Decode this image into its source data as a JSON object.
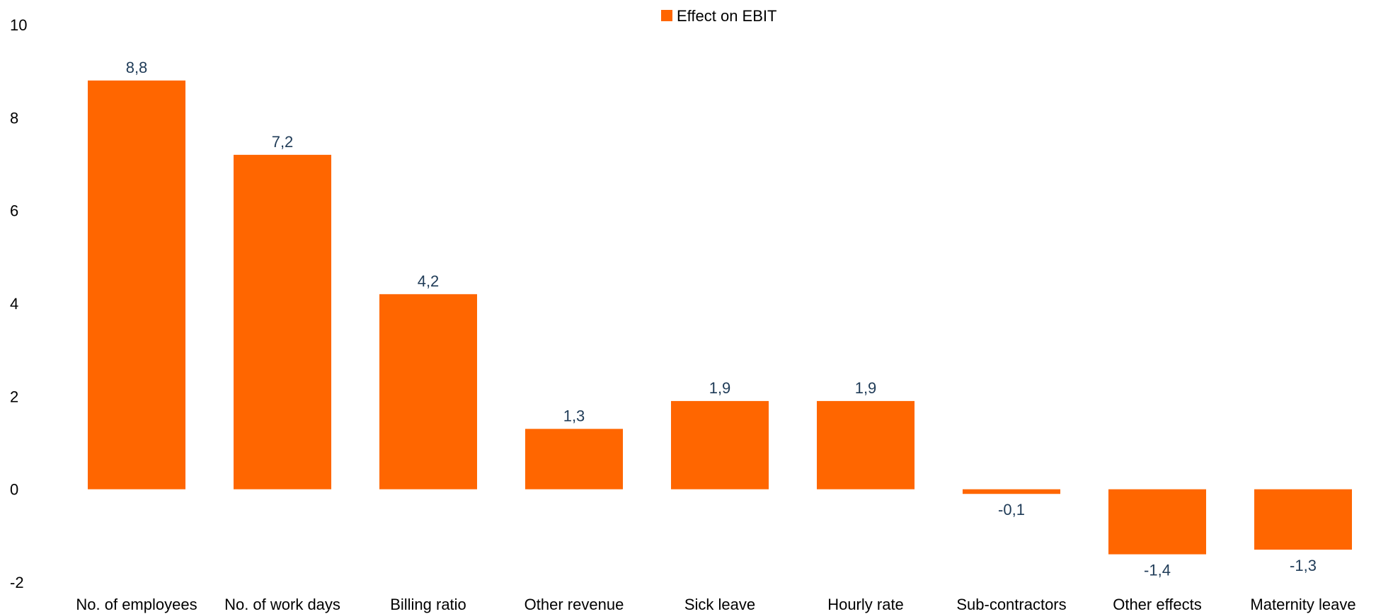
{
  "chart_data": {
    "type": "bar",
    "categories": [
      "No. of employees",
      "No. of work days",
      "Billing ratio",
      "Other revenue",
      "Sick leave",
      "Hourly rate",
      "Sub-contractors",
      "Other effects",
      "Maternity leave"
    ],
    "series": [
      {
        "name": "Effect on EBIT",
        "values": [
          8.8,
          7.2,
          4.2,
          1.3,
          1.9,
          1.9,
          -0.1,
          -1.4,
          -1.3
        ],
        "labels": [
          "8,8",
          "7,2",
          "4,2",
          "1,3",
          "1,9",
          "1,9",
          "-0,1",
          "-1,4",
          "-1,3"
        ]
      }
    ],
    "title": "",
    "xlabel": "",
    "ylabel": "",
    "ylim": [
      -2,
      10
    ],
    "yticks": [
      -2,
      0,
      2,
      4,
      6,
      8,
      10
    ],
    "grid": false,
    "legend": "top-center",
    "colors": {
      "bar": "#FF6600",
      "data_label": "#1F3B57"
    }
  }
}
